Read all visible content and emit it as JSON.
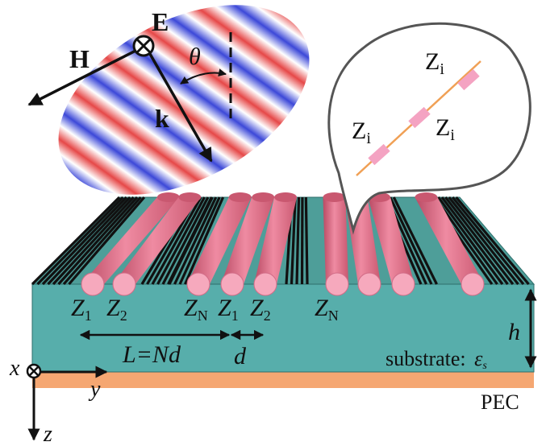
{
  "wave": {
    "e_label": "E",
    "h_label": "H",
    "k_label": "k",
    "theta_label": "θ"
  },
  "callout": {
    "zi_label": "Z",
    "zi_sub": "i"
  },
  "structure": {
    "z1": "Z",
    "z1_sub": "1",
    "z2": "Z",
    "z2_sub": "2",
    "zn": "Z",
    "zn_sub": "N",
    "period_label": "L=Nd",
    "d_label": "d",
    "h_label": "h",
    "substrate_label": "substrate:",
    "eps": "ε",
    "eps_sub": "s",
    "pec_label": "PEC"
  },
  "axes": {
    "x_label": "x",
    "y_label": "y",
    "z_label": "z"
  },
  "colors": {
    "substrate_top": "#4e9e99",
    "substrate_front": "#57aeab",
    "pec": "#f5a772",
    "rod": "#e87d94",
    "rod_cap": "#f6a9bd",
    "wire": "#111111",
    "wave_red": "#e64848",
    "wave_blue": "#3c48d8",
    "callout_line": "#f0a055",
    "callout_block": "#f4a3c2"
  }
}
